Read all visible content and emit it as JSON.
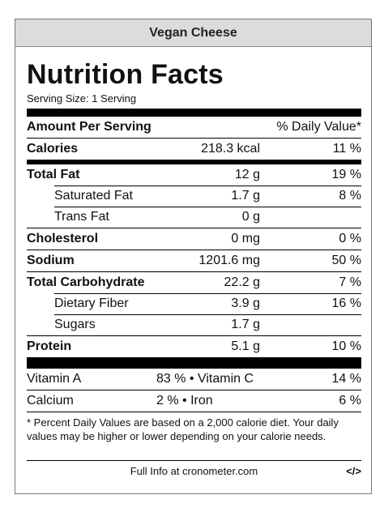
{
  "product_name": "Vegan Cheese",
  "title": "Nutrition Facts",
  "serving_size": "Serving Size: 1 Serving",
  "header": {
    "amount_label": "Amount Per Serving",
    "dv_label": "% Daily Value*"
  },
  "calories": {
    "name": "Calories",
    "amount": "218.3 kcal",
    "dv": "11 %"
  },
  "nutrients": [
    {
      "name": "Total Fat",
      "amount": "12 g",
      "dv": "19 %"
    },
    {
      "name": "Saturated Fat",
      "amount": "1.7 g",
      "dv": "8 %"
    },
    {
      "name": "Trans Fat",
      "amount": "0 g",
      "dv": ""
    },
    {
      "name": "Cholesterol",
      "amount": "0 mg",
      "dv": "0 %"
    },
    {
      "name": "Sodium",
      "amount": "1201.6 mg",
      "dv": "50 %"
    },
    {
      "name": "Total Carbohydrate",
      "amount": "22.2 g",
      "dv": "7 %"
    },
    {
      "name": "Dietary Fiber",
      "amount": "3.9 g",
      "dv": "16 %"
    },
    {
      "name": "Sugars",
      "amount": "1.7 g",
      "dv": ""
    },
    {
      "name": "Protein",
      "amount": "5.1 g",
      "dv": "10 %"
    }
  ],
  "vitamins": [
    {
      "left_name": "Vitamin A",
      "left_dv": "83 % • Vitamin C",
      "right_dv": "14 %"
    },
    {
      "left_name": "Calcium",
      "left_dv": "2 % • Iron",
      "right_dv": "6 %"
    }
  ],
  "footnote": "* Percent Daily Values are based on a 2,000 calorie diet. Your daily values may be higher or lower depending on your calorie needs.",
  "footer": {
    "link": "Full Info at cronometer.com",
    "embed": "</>"
  }
}
